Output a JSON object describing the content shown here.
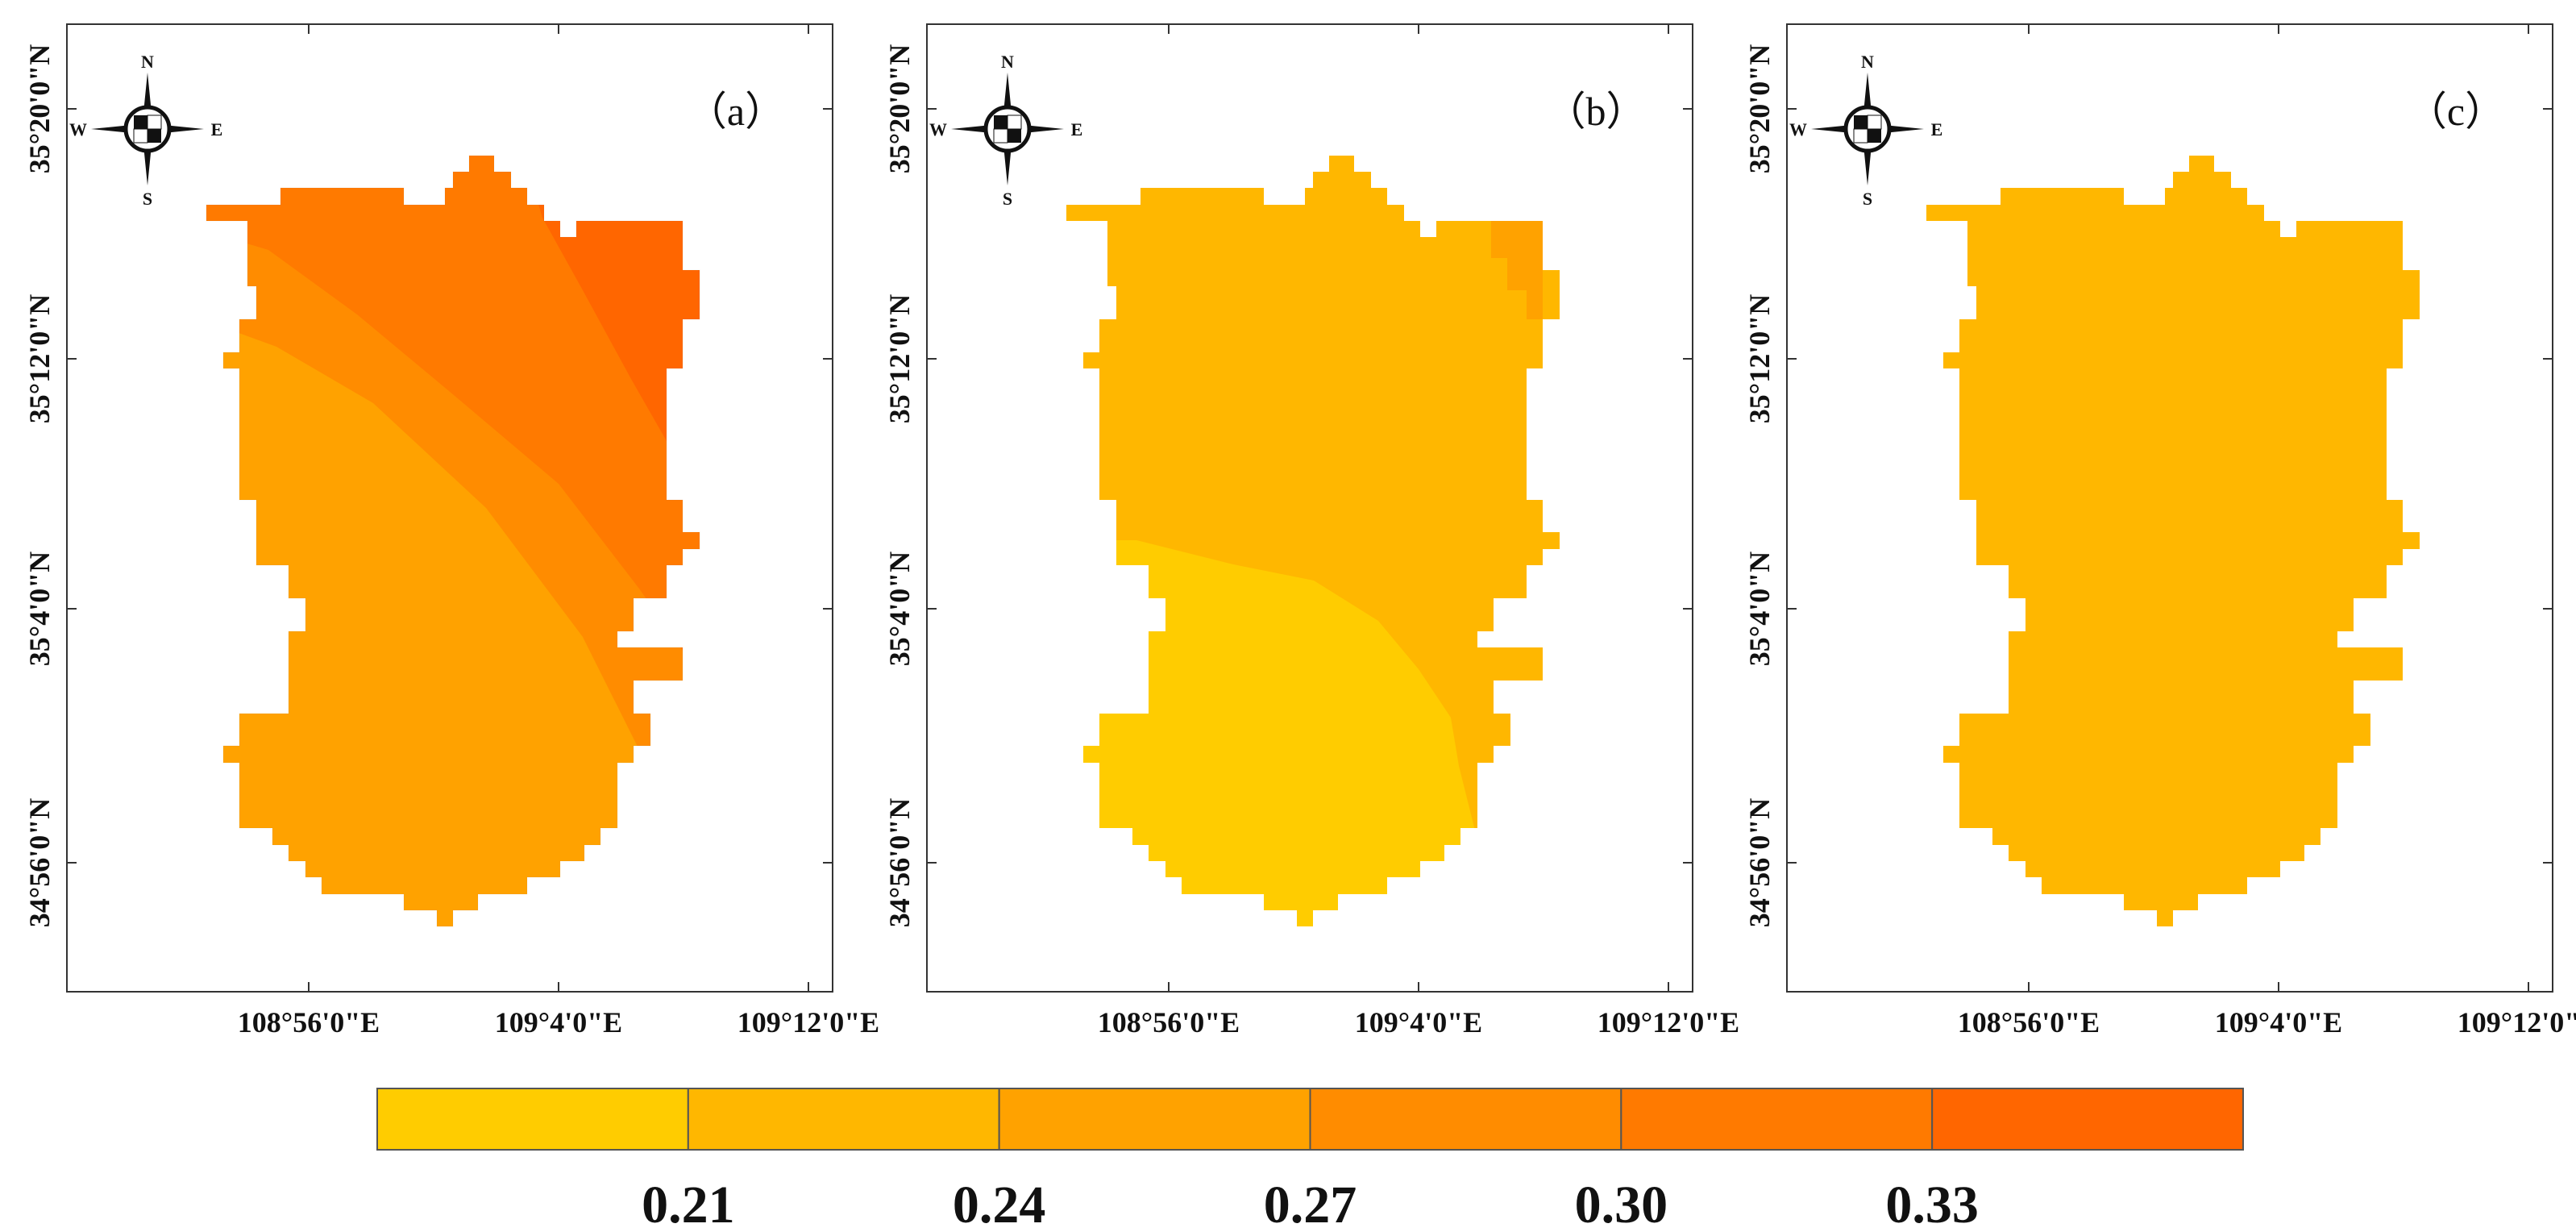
{
  "figure": {
    "panels": [
      {
        "id": "a",
        "label": "（a）",
        "variant": "gradient"
      },
      {
        "id": "b",
        "label": "（b）",
        "variant": "two-zone"
      },
      {
        "id": "c",
        "label": "（c）",
        "variant": "uniform"
      }
    ],
    "axes": {
      "x_ticks": [
        "108°56'0\"E",
        "109°4'0\"E",
        "109°12'0\"E"
      ],
      "y_ticks": [
        "35°20'0\"N",
        "35°12'0\"N",
        "35°4'0\"N",
        "34°56'0\"N"
      ]
    },
    "compass": {
      "north": "N",
      "south": "S",
      "east": "E",
      "west": "W"
    }
  },
  "legend": {
    "labels": [
      "0.21",
      "0.24",
      "0.27",
      "0.30",
      "0.33"
    ]
  },
  "colors": {
    "class_1": "#FFCC00",
    "class_2": "#FFB700",
    "class_3": "#FFA200",
    "class_4": "#FF8C00",
    "class_5": "#FF7A00",
    "class_6": "#FF6600",
    "frame": "#333333",
    "legend_border": "#555555"
  }
}
